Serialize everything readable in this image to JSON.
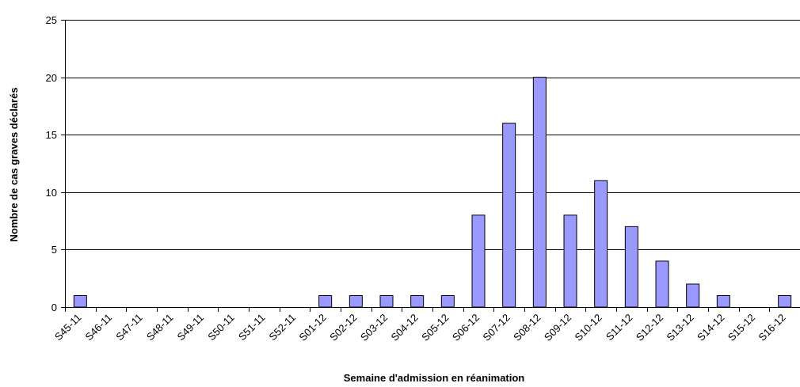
{
  "chart_data": {
    "type": "bar",
    "title": "",
    "xlabel": "Semaine d'admission en réanimation",
    "ylabel": "Nombre de cas graves déclarés",
    "ylim": [
      0,
      25
    ],
    "yticks": [
      0,
      5,
      10,
      15,
      20,
      25
    ],
    "grid": true,
    "legend": "none",
    "bar_color": "#9999ff",
    "bar_stroke": "#000000",
    "categories": [
      "S45-11",
      "S46-11",
      "S47-11",
      "S48-11",
      "S49-11",
      "S50-11",
      "S51-11",
      "S52-11",
      "S01-12",
      "S02-12",
      "S03-12",
      "S04-12",
      "S05-12",
      "S06-12",
      "S07-12",
      "S08-12",
      "S09-12",
      "S10-12",
      "S11-12",
      "S12-12",
      "S13-12",
      "S14-12",
      "S15-12",
      "S16-12"
    ],
    "values": [
      1,
      0,
      0,
      0,
      0,
      0,
      0,
      0,
      1,
      1,
      1,
      1,
      1,
      8,
      16,
      20,
      8,
      11,
      7,
      4,
      2,
      1,
      0,
      1
    ]
  }
}
